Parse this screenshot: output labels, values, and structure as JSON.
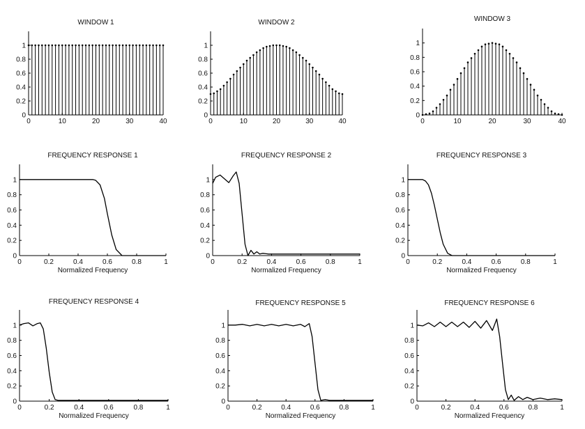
{
  "chart_data": [
    {
      "type": "stem",
      "title": "WINDOW 1",
      "xlim": [
        0,
        40
      ],
      "ylim": [
        0,
        1.2
      ],
      "xticks": [
        "0",
        "10",
        "20",
        "30",
        "40"
      ],
      "yticks": [
        "0",
        "0.2",
        "0.4",
        "0.6",
        "0.8",
        "1"
      ],
      "window": "rectangular",
      "n": 41,
      "values": [
        1,
        1,
        1,
        1,
        1,
        1,
        1,
        1,
        1,
        1,
        1,
        1,
        1,
        1,
        1,
        1,
        1,
        1,
        1,
        1,
        1,
        1,
        1,
        1,
        1,
        1,
        1,
        1,
        1,
        1,
        1,
        1,
        1,
        1,
        1,
        1,
        1,
        1,
        1,
        1,
        1
      ]
    },
    {
      "type": "stem",
      "title": "WINDOW 2",
      "xlim": [
        0,
        40
      ],
      "ylim": [
        0,
        1.2
      ],
      "xticks": [
        "0",
        "10",
        "20",
        "30",
        "40"
      ],
      "yticks": [
        "0",
        "0.2",
        "0.4",
        "0.6",
        "0.8",
        "1"
      ],
      "window": "hamming",
      "n": 41,
      "values": [
        0.3,
        0.31,
        0.34,
        0.37,
        0.42,
        0.47,
        0.52,
        0.58,
        0.63,
        0.68,
        0.73,
        0.78,
        0.82,
        0.86,
        0.9,
        0.93,
        0.96,
        0.98,
        0.99,
        1.0,
        1.0,
        1.0,
        0.99,
        0.98,
        0.96,
        0.93,
        0.9,
        0.86,
        0.82,
        0.78,
        0.73,
        0.68,
        0.63,
        0.58,
        0.52,
        0.47,
        0.42,
        0.37,
        0.34,
        0.31,
        0.3
      ]
    },
    {
      "type": "stem",
      "title": "WINDOW 3",
      "xlim": [
        0,
        40
      ],
      "ylim": [
        0,
        1.2
      ],
      "xticks": [
        "0",
        "10",
        "20",
        "30",
        "40"
      ],
      "yticks": [
        "0",
        "0.2",
        "0.4",
        "0.6",
        "0.8",
        "1"
      ],
      "window": "hann",
      "n": 41,
      "values": [
        0.0,
        0.01,
        0.02,
        0.05,
        0.1,
        0.15,
        0.21,
        0.27,
        0.35,
        0.42,
        0.5,
        0.58,
        0.65,
        0.73,
        0.79,
        0.85,
        0.9,
        0.95,
        0.98,
        0.99,
        1.0,
        0.99,
        0.98,
        0.95,
        0.9,
        0.85,
        0.79,
        0.73,
        0.65,
        0.58,
        0.5,
        0.42,
        0.35,
        0.27,
        0.21,
        0.15,
        0.1,
        0.05,
        0.02,
        0.01,
        0.0
      ]
    },
    {
      "type": "line",
      "title": "FREQUENCY RESPONSE 1",
      "xlabel": "Normalized Frequency",
      "xlim": [
        0,
        1
      ],
      "ylim": [
        0,
        1.2
      ],
      "xticks": [
        "0",
        "0.2",
        "0.4",
        "0.6",
        "0.8",
        "1"
      ],
      "yticks": [
        "0",
        "0.2",
        "0.4",
        "0.6",
        "0.8",
        "1"
      ],
      "x": [
        0,
        0.1,
        0.2,
        0.3,
        0.4,
        0.5,
        0.52,
        0.55,
        0.58,
        0.6,
        0.63,
        0.66,
        0.7,
        0.8,
        0.9,
        1.0
      ],
      "y": [
        1,
        1,
        1,
        1,
        1,
        1,
        0.99,
        0.93,
        0.75,
        0.55,
        0.27,
        0.08,
        0.0,
        0,
        0,
        0
      ]
    },
    {
      "type": "line",
      "title": "FREQUENCY RESPONSE 2",
      "xlabel": "Normalized Frequency",
      "xlim": [
        0,
        1
      ],
      "ylim": [
        0,
        1.2
      ],
      "xticks": [
        "0",
        "0.2",
        "0.4",
        "0.6",
        "0.8",
        "1"
      ],
      "yticks": [
        "0",
        "0.2",
        "0.4",
        "0.6",
        "0.8",
        "1"
      ],
      "x": [
        0,
        0.02,
        0.05,
        0.08,
        0.11,
        0.14,
        0.16,
        0.18,
        0.2,
        0.22,
        0.24,
        0.26,
        0.28,
        0.3,
        0.32,
        0.34,
        0.38,
        0.42,
        0.5,
        0.6,
        0.7,
        0.8,
        0.9,
        1.0
      ],
      "y": [
        0.95,
        1.03,
        1.06,
        1.01,
        0.96,
        1.05,
        1.1,
        0.95,
        0.55,
        0.15,
        0.0,
        0.07,
        0.02,
        0.05,
        0.02,
        0.03,
        0.02,
        0.02,
        0.02,
        0.02,
        0.02,
        0.02,
        0.02,
        0.02
      ]
    },
    {
      "type": "line",
      "title": "FREQUENCY RESPONSE 3",
      "xlabel": "Normalized Frequency",
      "xlim": [
        0,
        1
      ],
      "ylim": [
        0,
        1.2
      ],
      "xticks": [
        "0",
        "0.2",
        "0.4",
        "0.6",
        "0.8",
        "1"
      ],
      "yticks": [
        "0",
        "0.2",
        "0.4",
        "0.6",
        "0.8",
        "1"
      ],
      "x": [
        0,
        0.05,
        0.1,
        0.12,
        0.14,
        0.16,
        0.18,
        0.2,
        0.22,
        0.24,
        0.27,
        0.3,
        0.4,
        0.6,
        0.8,
        1.0
      ],
      "y": [
        1,
        1,
        1,
        0.98,
        0.93,
        0.82,
        0.66,
        0.48,
        0.3,
        0.15,
        0.03,
        0.0,
        0,
        0,
        0,
        0
      ]
    },
    {
      "type": "line",
      "title": "FREQUENCY RESPONSE 4",
      "xlabel": "Normalized Frequency",
      "xlim": [
        0,
        1
      ],
      "ylim": [
        0,
        1.2
      ],
      "xticks": [
        "0",
        "0.2",
        "0.4",
        "0.6",
        "0.8",
        "1"
      ],
      "yticks": [
        "0",
        "0.2",
        "0.4",
        "0.6",
        "0.8",
        "1"
      ],
      "x": [
        0,
        0.03,
        0.06,
        0.09,
        0.12,
        0.14,
        0.16,
        0.18,
        0.2,
        0.22,
        0.24,
        0.26,
        0.3,
        0.4,
        0.6,
        0.8,
        1.0
      ],
      "y": [
        1.0,
        1.02,
        1.03,
        0.99,
        1.02,
        1.03,
        0.95,
        0.7,
        0.38,
        0.12,
        0.02,
        0.01,
        0.01,
        0.01,
        0.01,
        0.01,
        0.01
      ]
    },
    {
      "type": "line",
      "title": "FREQUENCY RESPONSE 5",
      "xlabel": "Normalized Frequency",
      "xlim": [
        0,
        1
      ],
      "ylim": [
        0,
        1.2
      ],
      "xticks": [
        "0",
        "0.2",
        "0.4",
        "0.6",
        "0.8",
        "1"
      ],
      "yticks": [
        "0",
        "0.2",
        "0.4",
        "0.6",
        "0.8",
        "1"
      ],
      "x": [
        0,
        0.05,
        0.1,
        0.15,
        0.2,
        0.25,
        0.3,
        0.35,
        0.4,
        0.45,
        0.5,
        0.53,
        0.56,
        0.58,
        0.6,
        0.62,
        0.64,
        0.67,
        0.7,
        0.8,
        0.9,
        1.0
      ],
      "y": [
        1,
        1.0,
        1.01,
        0.99,
        1.01,
        0.99,
        1.01,
        0.99,
        1.01,
        0.99,
        1.01,
        0.98,
        1.02,
        0.85,
        0.5,
        0.15,
        0.01,
        0.02,
        0.01,
        0.01,
        0.01,
        0.01
      ]
    },
    {
      "type": "line",
      "title": "FREQUENCY RESPONSE 6",
      "xlabel": "Normalized Frequency",
      "xlim": [
        0,
        1
      ],
      "ylim": [
        0,
        1.2
      ],
      "xticks": [
        "0",
        "0.2",
        "0.4",
        "0.6",
        "0.8",
        "1"
      ],
      "yticks": [
        "0",
        "0.2",
        "0.4",
        "0.6",
        "0.8",
        "1"
      ],
      "x": [
        0,
        0.04,
        0.08,
        0.12,
        0.16,
        0.2,
        0.24,
        0.28,
        0.32,
        0.36,
        0.4,
        0.44,
        0.48,
        0.52,
        0.55,
        0.57,
        0.59,
        0.61,
        0.63,
        0.65,
        0.67,
        0.7,
        0.73,
        0.76,
        0.8,
        0.85,
        0.9,
        0.95,
        1.0
      ],
      "y": [
        1.0,
        0.99,
        1.03,
        0.98,
        1.04,
        0.98,
        1.04,
        0.98,
        1.04,
        0.97,
        1.05,
        0.96,
        1.06,
        0.93,
        1.08,
        0.85,
        0.5,
        0.15,
        0.02,
        0.08,
        0.01,
        0.06,
        0.02,
        0.05,
        0.02,
        0.04,
        0.02,
        0.03,
        0.02
      ]
    }
  ]
}
